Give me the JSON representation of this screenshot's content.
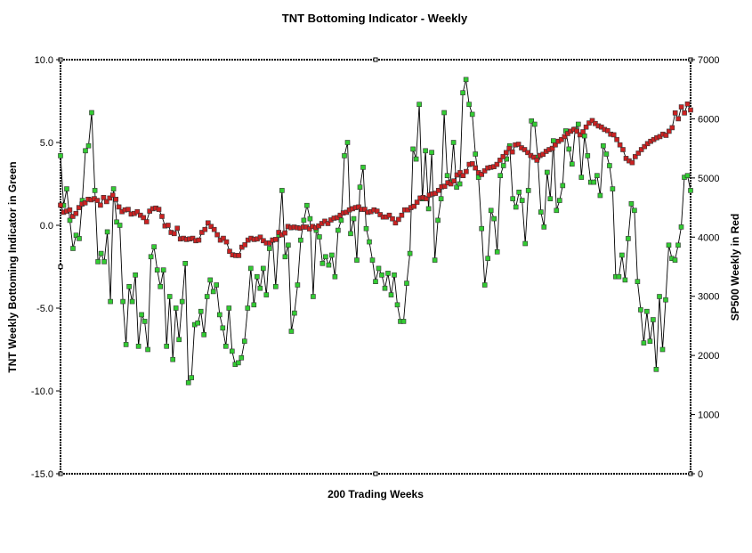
{
  "chart_data": {
    "type": "line",
    "title": "TNT Bottoming Indicator - Weekly",
    "xlabel": "200 Trading Weeks",
    "ylabel_left": "TNT Weekly Bottoming Indicator in Green",
    "ylabel_right": "SP500 Weekly in Red",
    "x_count": 200,
    "y_left": {
      "min": -15,
      "max": 10,
      "ticks": [
        10,
        5,
        0,
        -5,
        -10,
        -15
      ],
      "tick_labels": [
        "10.0",
        "5.0",
        "0.0",
        "-5.0",
        "-10.0",
        "-15.0"
      ]
    },
    "y_right": {
      "min": 0,
      "max": 7000,
      "ticks": [
        7000,
        6000,
        5000,
        4000,
        3000,
        2000,
        1000,
        0
      ],
      "tick_labels": [
        "7000",
        "6000",
        "5000",
        "4000",
        "3000",
        "2000",
        "1000",
        "0"
      ]
    },
    "grid": false,
    "legend": "none",
    "series": [
      {
        "axis": "left",
        "color": "#33cc33",
        "values": [
          4.2,
          1.2,
          2.2,
          0.3,
          -1.4,
          -0.6,
          -0.8,
          1.5,
          4.5,
          4.8,
          6.8,
          2.1,
          -2.2,
          -1.7,
          -2.2,
          -0.4,
          -4.6,
          2.2,
          0.2,
          0.0,
          -4.6,
          -7.2,
          -3.7,
          -4.6,
          -3.0,
          -7.3,
          -5.4,
          -5.8,
          -7.5,
          -1.9,
          -1.3,
          -2.7,
          -3.7,
          -2.7,
          -7.3,
          -4.3,
          -8.1,
          -5.0,
          -6.9,
          -4.6,
          -2.3,
          -9.5,
          -9.2,
          -6.0,
          -5.9,
          -5.2,
          -6.6,
          -4.3,
          -3.3,
          -4.0,
          -3.6,
          -5.4,
          -6.2,
          -7.3,
          -5.0,
          -7.6,
          -8.4,
          -8.3,
          -8.0,
          -7.0,
          -5.0,
          -2.6,
          -4.8,
          -3.1,
          -3.8,
          -2.6,
          -4.2,
          -1.4,
          -0.9,
          -3.7,
          -0.6,
          2.1,
          -1.9,
          -1.2,
          -6.4,
          -5.3,
          -3.6,
          -0.9,
          0.3,
          1.2,
          0.4,
          -4.3,
          -0.3,
          -0.7,
          -2.3,
          -1.9,
          -2.4,
          -1.8,
          -3.1,
          -0.3,
          0.3,
          4.2,
          5.0,
          -0.5,
          0.4,
          -2.1,
          2.3,
          3.5,
          -0.2,
          -1.0,
          -2.1,
          -3.4,
          -2.6,
          -3.0,
          -3.8,
          -2.9,
          -4.2,
          -3.0,
          -4.8,
          -5.8,
          -5.8,
          -3.5,
          -1.7,
          4.6,
          4.0,
          7.3,
          1.6,
          4.5,
          1.0,
          4.4,
          -2.1,
          0.3,
          1.6,
          6.8,
          3.0,
          2.6,
          5.0,
          2.3,
          2.5,
          8.0,
          8.8,
          7.3,
          6.7,
          4.3,
          2.9,
          -0.2,
          -3.6,
          -2.0,
          0.9,
          0.4,
          -1.6,
          3.0,
          3.6,
          4.0,
          4.8,
          1.6,
          1.1,
          2.0,
          1.5,
          -1.1,
          2.1,
          6.3,
          6.1,
          4.1,
          0.8,
          -0.1,
          3.2,
          1.6,
          5.1,
          0.9,
          1.5,
          2.4,
          5.7,
          4.6,
          3.7,
          5.8,
          6.1,
          2.9,
          5.4,
          4.2,
          2.6,
          2.6,
          3.0,
          1.8,
          4.8,
          4.3,
          3.6,
          2.2,
          -3.1,
          -3.1,
          -1.8,
          -3.3,
          -0.8,
          1.3,
          0.9,
          -3.4,
          -5.1,
          -7.1,
          -5.2,
          -7.0,
          -5.7,
          -8.7,
          -4.3,
          -7.5,
          -4.5,
          -1.2,
          -2.0,
          -2.1,
          -1.2,
          -0.1,
          2.9,
          3.0,
          2.1
        ]
      },
      {
        "axis": "right",
        "color": "#cc2222",
        "values": [
          4540,
          4420,
          4440,
          4460,
          4350,
          4400,
          4500,
          4560,
          4580,
          4640,
          4630,
          4650,
          4620,
          4540,
          4670,
          4600,
          4660,
          4710,
          4640,
          4510,
          4430,
          4460,
          4470,
          4390,
          4400,
          4430,
          4370,
          4330,
          4260,
          4440,
          4480,
          4490,
          4470,
          4350,
          4190,
          4200,
          4080,
          4060,
          4150,
          3970,
          3980,
          3960,
          3970,
          3980,
          3940,
          3950,
          4080,
          4130,
          4240,
          4180,
          4130,
          4040,
          3950,
          3980,
          3920,
          3760,
          3700,
          3690,
          3690,
          3830,
          3870,
          3950,
          3980,
          3960,
          3970,
          4000,
          3940,
          3900,
          3900,
          3950,
          3960,
          4080,
          4040,
          4070,
          4180,
          4160,
          4170,
          4160,
          4150,
          4170,
          4170,
          4140,
          4180,
          4160,
          4190,
          4230,
          4270,
          4230,
          4290,
          4320,
          4330,
          4370,
          4410,
          4420,
          4460,
          4480,
          4500,
          4510,
          4470,
          4470,
          4420,
          4430,
          4460,
          4440,
          4380,
          4340,
          4340,
          4370,
          4310,
          4240,
          4300,
          4370,
          4460,
          4460,
          4500,
          4520,
          4590,
          4660,
          4670,
          4650,
          4710,
          4730,
          4740,
          4790,
          4850,
          4860,
          4920,
          4900,
          4950,
          5050,
          5090,
          5040,
          5110,
          5230,
          5240,
          5170,
          5090,
          5060,
          5120,
          5170,
          5180,
          5190,
          5230,
          5300,
          5360,
          5430,
          5500,
          5440,
          5560,
          5570,
          5510,
          5480,
          5430,
          5380,
          5350,
          5300,
          5380,
          5400,
          5450,
          5480,
          5500,
          5560,
          5620,
          5650,
          5700,
          5750,
          5790,
          5820,
          5790,
          5730,
          5780,
          5860,
          5930,
          5970,
          5920,
          5880,
          5860,
          5820,
          5800,
          5740,
          5730,
          5650,
          5560,
          5480,
          5330,
          5290,
          5260,
          5360,
          5420,
          5480,
          5530,
          5580,
          5620,
          5650,
          5680,
          5700,
          5740,
          5720,
          5790,
          5850,
          6100,
          6000,
          6200,
          6100,
          6250,
          6150
        ]
      }
    ]
  }
}
